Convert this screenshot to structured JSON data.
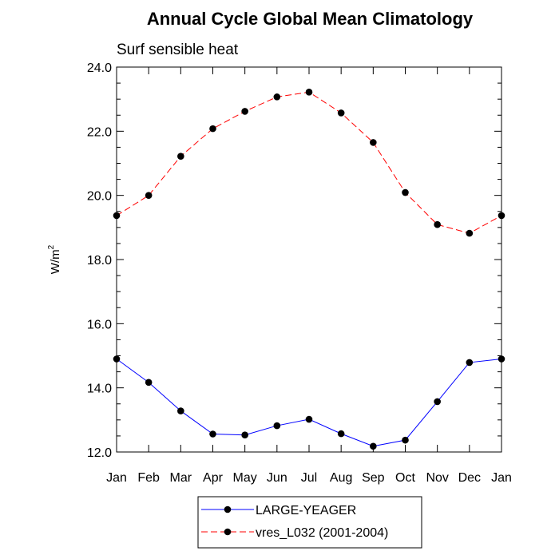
{
  "chart_data": {
    "type": "line",
    "title": "Annual Cycle Global Mean Climatology",
    "subtitle": "Surf sensible heat",
    "ylabel": "W/m",
    "ylabel_superscript": "2",
    "xlabel": "",
    "categories": [
      "Jan",
      "Feb",
      "Mar",
      "Apr",
      "May",
      "Jun",
      "Jul",
      "Aug",
      "Sep",
      "Oct",
      "Nov",
      "Dec",
      "Jan"
    ],
    "ylim": [
      12.0,
      24.0
    ],
    "yticks": [
      "12.0",
      "14.0",
      "16.0",
      "18.0",
      "20.0",
      "22.0",
      "24.0"
    ],
    "ytick_values": [
      12,
      14,
      16,
      18,
      20,
      22,
      24
    ],
    "series": [
      {
        "name": "LARGE-YEAGER",
        "color": "#0000ff",
        "dash": "solid",
        "values": [
          14.9,
          14.17,
          13.28,
          12.56,
          12.53,
          12.82,
          13.02,
          12.57,
          12.18,
          12.37,
          13.57,
          14.79,
          14.9
        ]
      },
      {
        "name": "vres_L032 (2001-2004)",
        "color": "#ff0000",
        "dash": "dashed",
        "values": [
          19.37,
          20.0,
          21.22,
          22.08,
          22.62,
          23.07,
          23.22,
          22.57,
          21.65,
          20.09,
          19.09,
          18.82,
          19.37
        ]
      }
    ],
    "legend_position": "bottom-center",
    "grid": false
  }
}
